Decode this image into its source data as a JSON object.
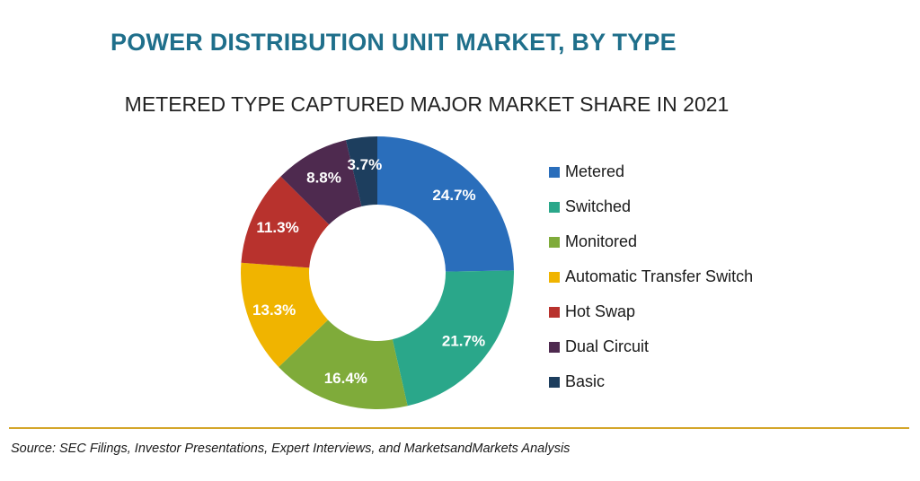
{
  "header": {
    "title": "POWER DISTRIBUTION UNIT MARKET, BY TYPE",
    "subtitle": "METERED TYPE CAPTURED MAJOR MARKET SHARE IN 2021"
  },
  "chart_data": {
    "type": "pie",
    "variant": "donut",
    "title": "METERED TYPE CAPTURED MAJOR MARKET SHARE IN 2021",
    "categories": [
      "Metered",
      "Switched",
      "Monitored",
      "Automatic Transfer Switch",
      "Hot Swap",
      "Dual Circuit",
      "Basic"
    ],
    "values": [
      24.7,
      21.7,
      16.4,
      13.3,
      11.3,
      8.8,
      3.7
    ],
    "labels": [
      "24.7%",
      "21.7%",
      "16.4%",
      "13.3%",
      "11.3%",
      "8.8%",
      "3.7%"
    ],
    "unit": "%",
    "colors": [
      "#2a6ebb",
      "#2aa78a",
      "#7fab3a",
      "#f0b400",
      "#b8322d",
      "#4e2a4f",
      "#1d3e5e"
    ],
    "legend_position": "right"
  },
  "footer": {
    "source": "Source: SEC Filings, Investor Presentations, Expert Interviews, and MarketsandMarkets Analysis"
  }
}
